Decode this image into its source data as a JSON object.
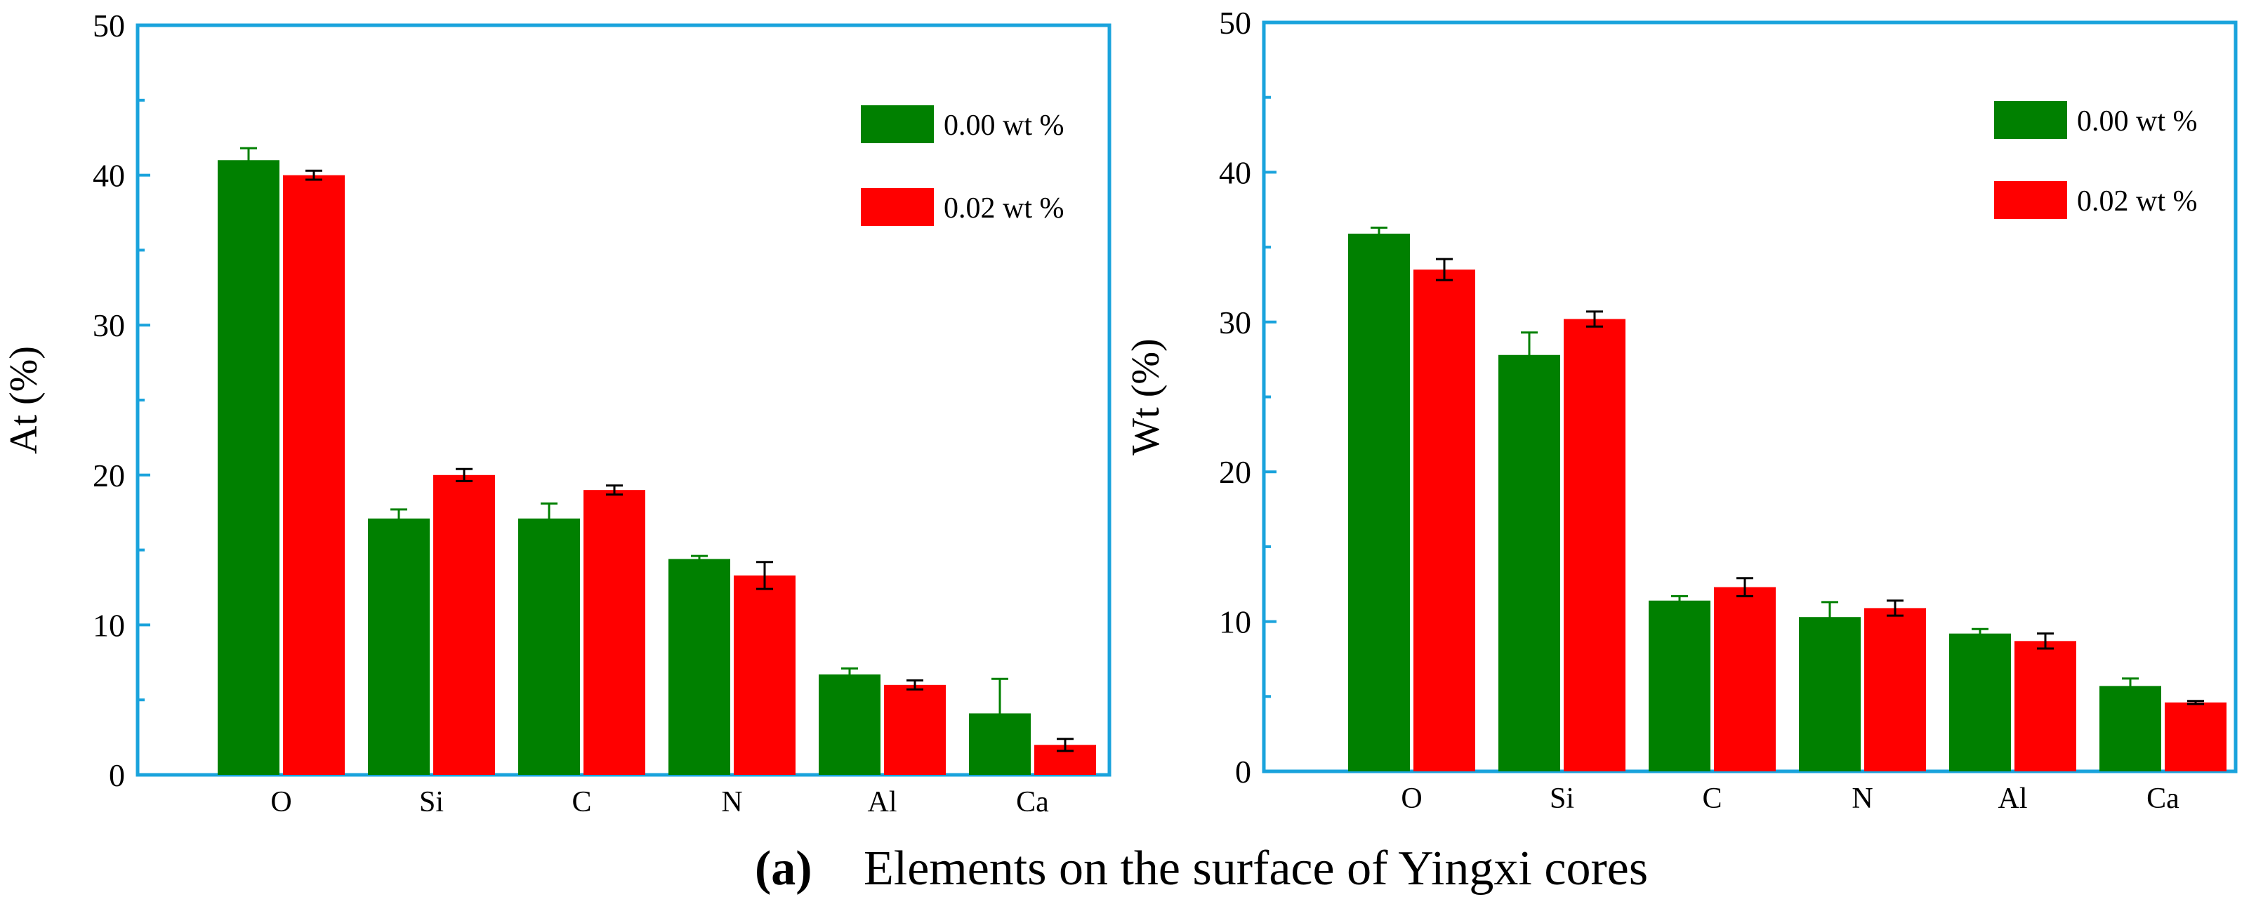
{
  "caption": {
    "label": "(a)",
    "text": "Elements on the surface of Yingxi cores"
  },
  "colors": {
    "series_0": "#008000",
    "series_1": "#ff0000",
    "frame": "#1aa3dc",
    "text": "#000000"
  },
  "chart_data": [
    {
      "type": "bar",
      "title": "",
      "xlabel": "",
      "ylabel": "At (%)",
      "ylim": [
        0,
        50
      ],
      "yticks": [
        0,
        10,
        20,
        30,
        40,
        50
      ],
      "categories": [
        "O",
        "Si",
        "C",
        "N",
        "Al",
        "Ca"
      ],
      "legend_position": "top-right",
      "series": [
        {
          "name": "0.00 wt %",
          "values": [
            41.0,
            17.1,
            17.1,
            14.4,
            6.7,
            4.1
          ],
          "errors": [
            0.8,
            0.6,
            1.0,
            0.2,
            0.4,
            2.3
          ]
        },
        {
          "name": "0.02 wt %",
          "values": [
            40.0,
            20.0,
            19.0,
            13.3,
            6.0,
            2.0
          ],
          "errors": [
            0.3,
            0.4,
            0.3,
            0.9,
            0.3,
            0.4
          ]
        }
      ]
    },
    {
      "type": "bar",
      "title": "",
      "xlabel": "",
      "ylabel": "Wt (%)",
      "ylim": [
        0,
        50
      ],
      "yticks": [
        0,
        10,
        20,
        30,
        40,
        50
      ],
      "categories": [
        "O",
        "Si",
        "C",
        "N",
        "Al",
        "Ca"
      ],
      "legend_position": "top-right",
      "series": [
        {
          "name": "0.00 wt %",
          "values": [
            35.9,
            27.8,
            11.4,
            10.3,
            9.2,
            5.7
          ],
          "errors": [
            0.4,
            1.5,
            0.3,
            1.0,
            0.3,
            0.5
          ]
        },
        {
          "name": "0.02 wt %",
          "values": [
            33.5,
            30.2,
            12.3,
            10.9,
            8.7,
            4.6
          ],
          "errors": [
            0.7,
            0.5,
            0.6,
            0.5,
            0.5,
            0.1
          ]
        }
      ]
    }
  ]
}
